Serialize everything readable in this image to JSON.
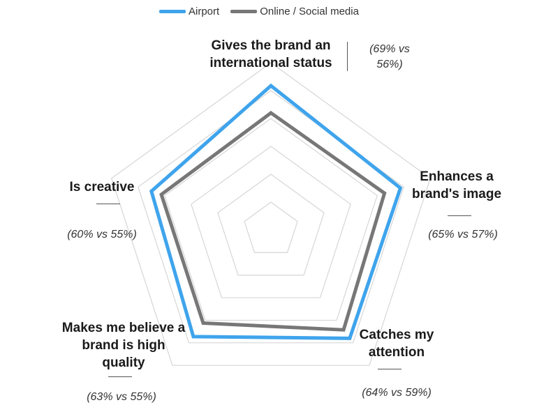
{
  "legend": {
    "series": [
      {
        "name": "Airport",
        "color": "#3fa4ec"
      },
      {
        "name": "Online / Social media",
        "color": "#777777"
      }
    ]
  },
  "chart_data": {
    "type": "radar",
    "categories": [
      "Gives the brand an international status",
      "Enhances a brand's image",
      "Catches my attention",
      "Makes me believe a brand is high quality",
      "Is creative"
    ],
    "comparison_labels": [
      "(69% vs 56%)",
      "(65% vs 57%)",
      "(64% vs 59%)",
      "(63% vs 55%)",
      "(60% vs 55%)"
    ],
    "series": [
      {
        "name": "Airport",
        "values": [
          69,
          65,
          64,
          63,
          60
        ],
        "color": "#3fa4ec"
      },
      {
        "name": "Online / Social media",
        "values": [
          56,
          57,
          59,
          55,
          55
        ],
        "color": "#777777"
      }
    ],
    "rmax": 80,
    "grid_rings": 6
  }
}
